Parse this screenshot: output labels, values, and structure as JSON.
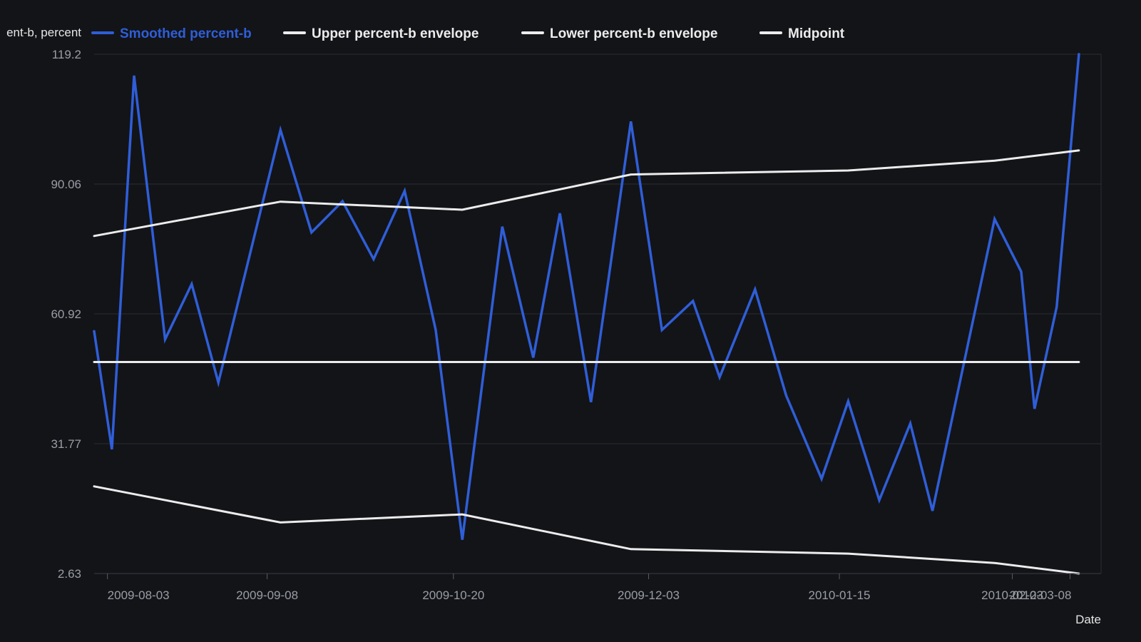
{
  "chart_data": {
    "type": "line",
    "title": "",
    "xlabel": "Date",
    "ylabel": "ent-b, percent",
    "legend_position": "top",
    "grid": true,
    "ylim": [
      2.63,
      119.2
    ],
    "xlim": [
      "2009-07-31",
      "2010-03-15"
    ],
    "y_ticks": [
      "2.63",
      "31.77",
      "60.92",
      "90.06",
      "119.2"
    ],
    "x_ticks": [
      "2009-08-03",
      "2009-09-08",
      "2009-10-20",
      "2009-12-03",
      "2010-01-15",
      "2010-02-23",
      "2010-03-08"
    ],
    "colors": {
      "background": "#131418",
      "grid": "#2a2c33",
      "smoothed": "#2f5ed8",
      "envelope": "#ececec"
    },
    "series": [
      {
        "name": "Smoothed percent-b",
        "color": "#2f5ed8",
        "points": [
          [
            "2009-07-31",
            57
          ],
          [
            "2009-08-04",
            30.5
          ],
          [
            "2009-08-09",
            114.4
          ],
          [
            "2009-08-16",
            55.2
          ],
          [
            "2009-08-22",
            67.6
          ],
          [
            "2009-08-28",
            45.5
          ],
          [
            "2009-09-11",
            102.2
          ],
          [
            "2009-09-18",
            79.2
          ],
          [
            "2009-09-25",
            86.2
          ],
          [
            "2009-10-02",
            73.2
          ],
          [
            "2009-10-09",
            88.5
          ],
          [
            "2009-10-16",
            57.3
          ],
          [
            "2009-10-22",
            10.2
          ],
          [
            "2009-10-31",
            80.5
          ],
          [
            "2009-11-07",
            51.1
          ],
          [
            "2009-11-13",
            83.5
          ],
          [
            "2009-11-20",
            41.1
          ],
          [
            "2009-11-29",
            104.1
          ],
          [
            "2009-12-06",
            57.3
          ],
          [
            "2009-12-13",
            63.8
          ],
          [
            "2009-12-19",
            46.7
          ],
          [
            "2009-12-27",
            66.4
          ],
          [
            "2010-01-03",
            42.6
          ],
          [
            "2010-01-11",
            23.9
          ],
          [
            "2010-01-17",
            41.3
          ],
          [
            "2010-01-24",
            19.1
          ],
          [
            "2010-01-31",
            36.3
          ],
          [
            "2010-02-05",
            16.7
          ],
          [
            "2010-02-19",
            82.2
          ],
          [
            "2010-02-25",
            70.4
          ],
          [
            "2010-02-28",
            39.6
          ],
          [
            "2010-03-05",
            62.5
          ],
          [
            "2010-03-10",
            119.2
          ]
        ]
      },
      {
        "name": "Upper percent-b envelope",
        "color": "#ececec",
        "points": [
          [
            "2009-07-31",
            78.4
          ],
          [
            "2009-09-11",
            86.1
          ],
          [
            "2009-10-22",
            84.3
          ],
          [
            "2009-11-29",
            92.2
          ],
          [
            "2010-01-17",
            93.1
          ],
          [
            "2010-02-19",
            95.3
          ],
          [
            "2010-03-10",
            97.6
          ]
        ]
      },
      {
        "name": "Lower percent-b envelope",
        "color": "#ececec",
        "points": [
          [
            "2009-07-31",
            22.2
          ],
          [
            "2009-09-11",
            14.1
          ],
          [
            "2009-10-22",
            15.9
          ],
          [
            "2009-11-29",
            8.1
          ],
          [
            "2010-01-17",
            7.1
          ],
          [
            "2010-02-19",
            5.0
          ],
          [
            "2010-03-10",
            2.63
          ]
        ]
      },
      {
        "name": "Midpoint",
        "color": "#ececec",
        "points": [
          [
            "2009-07-31",
            50.1
          ],
          [
            "2010-03-10",
            50.1
          ]
        ]
      }
    ]
  }
}
